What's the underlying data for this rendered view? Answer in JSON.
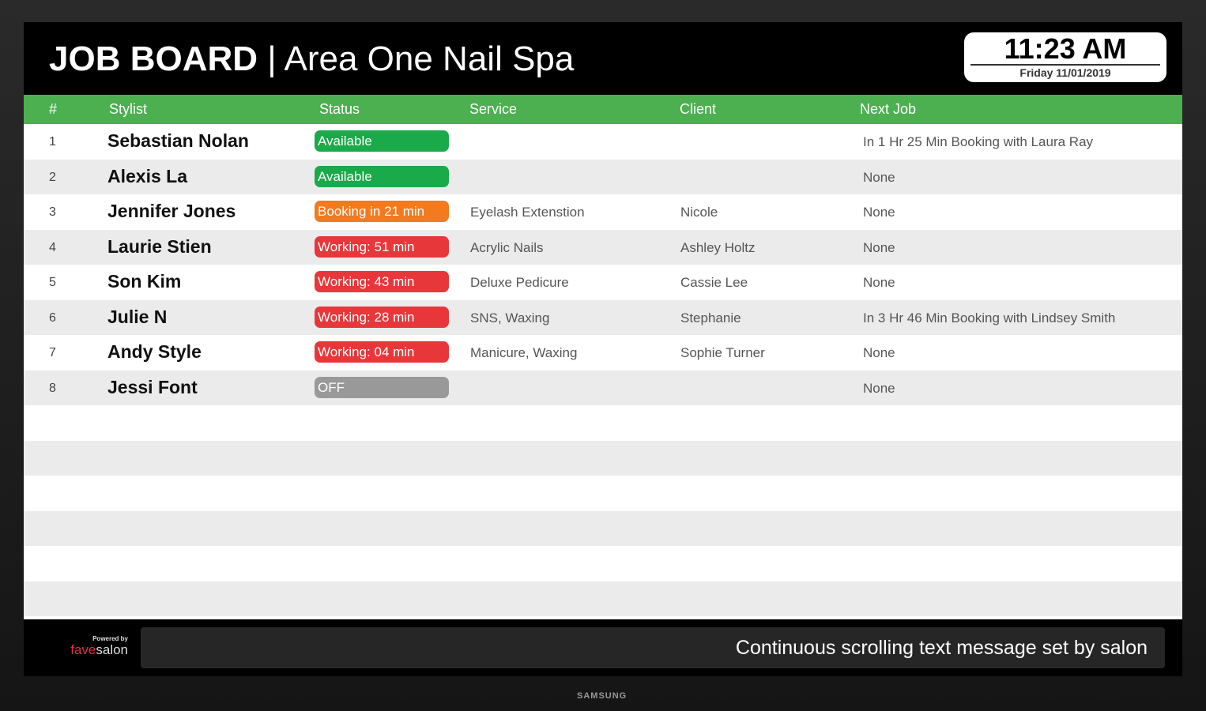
{
  "header": {
    "title_bold": "JOB BOARD",
    "title_sep": " | ",
    "title_rest": "Area One Nail Spa",
    "time": "11:23 AM",
    "date": "Friday 11/01/2019"
  },
  "columns": [
    "#",
    "Stylist",
    "Status",
    "Service",
    "Client",
    "Next Job"
  ],
  "status_colors": {
    "available": "#1aaa4a",
    "booking": "#f47a20",
    "working": "#e8373a",
    "off": "#999999"
  },
  "rows": [
    {
      "num": "1",
      "stylist": "Sebastian Nolan",
      "status": "Available",
      "status_type": "available",
      "service": "",
      "client": "",
      "next": "In 1 Hr 25 Min Booking with Laura Ray"
    },
    {
      "num": "2",
      "stylist": "Alexis La",
      "status": "Available",
      "status_type": "available",
      "service": "",
      "client": "",
      "next": "None"
    },
    {
      "num": "3",
      "stylist": "Jennifer Jones",
      "status": "Booking in 21 min",
      "status_type": "booking",
      "service": "Eyelash Extenstion",
      "client": "Nicole",
      "next": "None"
    },
    {
      "num": "4",
      "stylist": "Laurie Stien",
      "status": "Working: 51 min",
      "status_type": "working",
      "service": "Acrylic Nails",
      "client": "Ashley Holtz",
      "next": "None"
    },
    {
      "num": "5",
      "stylist": "Son Kim",
      "status": "Working: 43 min",
      "status_type": "working",
      "service": "Deluxe Pedicure",
      "client": "Cassie Lee",
      "next": "None"
    },
    {
      "num": "6",
      "stylist": "Julie N",
      "status": "Working: 28 min",
      "status_type": "working",
      "service": "SNS, Waxing",
      "client": "Stephanie",
      "next": "In 3 Hr 46 Min Booking with Lindsey Smith"
    },
    {
      "num": "7",
      "stylist": "Andy Style",
      "status": "Working: 04 min",
      "status_type": "working",
      "service": "Manicure, Waxing",
      "client": "Sophie Turner",
      "next": "None"
    },
    {
      "num": "8",
      "stylist": "Jessi Font",
      "status": "OFF",
      "status_type": "off",
      "service": "",
      "client": "",
      "next": "None"
    }
  ],
  "footer": {
    "powered_by": "Powered by",
    "logo_a": "fave",
    "logo_b": "salon",
    "ticker": "Continuous scrolling text message set by salon"
  },
  "tv_brand": "SAMSUNG"
}
